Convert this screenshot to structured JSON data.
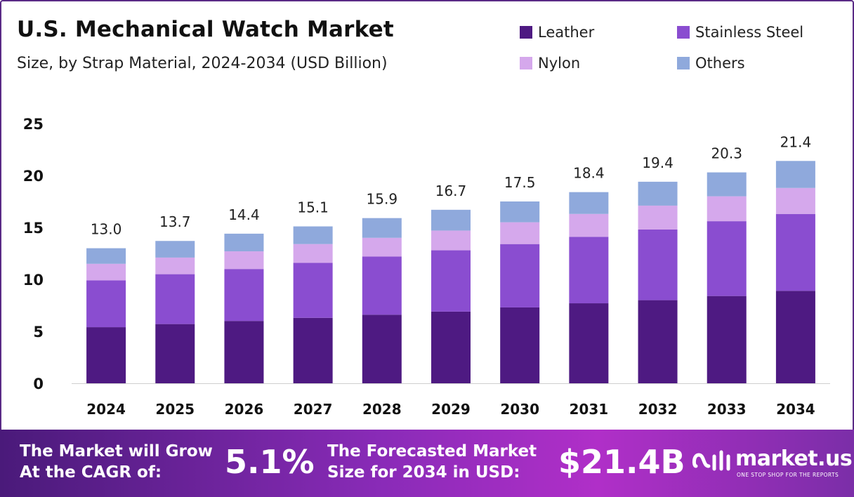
{
  "header": {
    "title": "U.S. Mechanical Watch Market",
    "subtitle": "Size, by Strap Material, 2024-2034 (USD Billion)"
  },
  "colors": {
    "leather": "#4e1a82",
    "stainless_steel": "#8a4dd0",
    "nylon": "#d5a8ec",
    "others": "#8fa9dc",
    "frame": "#5a2a86"
  },
  "chart_data": {
    "type": "bar",
    "stacked": true,
    "categories": [
      "2024",
      "2025",
      "2026",
      "2027",
      "2028",
      "2029",
      "2030",
      "2031",
      "2032",
      "2033",
      "2034"
    ],
    "series": [
      {
        "name": "Leather",
        "values": [
          5.4,
          5.7,
          6.0,
          6.3,
          6.6,
          6.9,
          7.3,
          7.7,
          8.0,
          8.4,
          8.9
        ]
      },
      {
        "name": "Stainless Steel",
        "values": [
          4.5,
          4.8,
          5.0,
          5.3,
          5.6,
          5.9,
          6.1,
          6.4,
          6.8,
          7.2,
          7.4
        ]
      },
      {
        "name": "Nylon",
        "values": [
          1.6,
          1.6,
          1.7,
          1.8,
          1.8,
          1.9,
          2.1,
          2.2,
          2.3,
          2.4,
          2.5
        ]
      },
      {
        "name": "Others",
        "values": [
          1.5,
          1.6,
          1.7,
          1.7,
          1.9,
          2.0,
          2.0,
          2.1,
          2.3,
          2.3,
          2.6
        ]
      }
    ],
    "totals": [
      "13.0",
      "13.7",
      "14.4",
      "15.1",
      "15.9",
      "16.7",
      "17.5",
      "18.4",
      "19.4",
      "20.3",
      "21.4"
    ],
    "yticks": [
      0,
      5,
      10,
      15,
      20,
      25
    ],
    "ylim": [
      0,
      25
    ],
    "grid": false,
    "legend_position": "top-right"
  },
  "footer": {
    "cagr_label_line1": "The Market will Grow",
    "cagr_label_line2": "At the CAGR of:",
    "cagr_value": "5.1%",
    "forecast_label_line1": "The Forecasted Market",
    "forecast_label_line2": "Size for 2034 in USD:",
    "forecast_value": "$21.4B",
    "brand": "market.us",
    "brand_tagline": "ONE STOP SHOP FOR THE REPORTS"
  }
}
